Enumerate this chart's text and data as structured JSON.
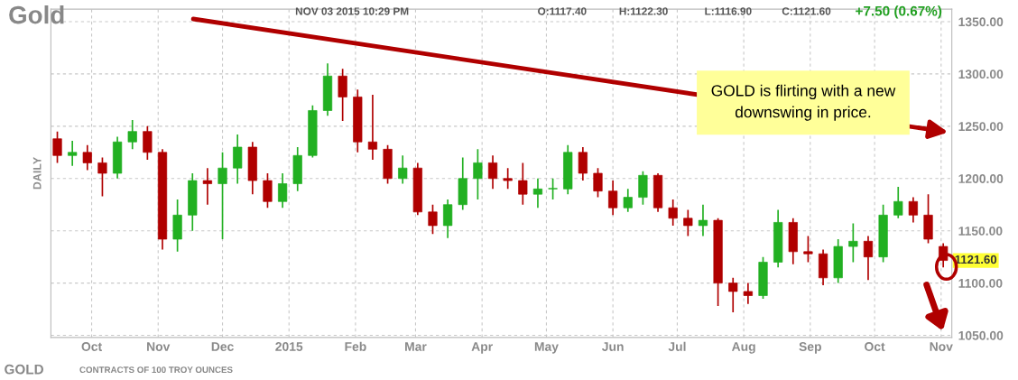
{
  "chart_data": {
    "type": "candlestick",
    "title": "Gold",
    "subtitle": "NOV 03 2015 10:29 PM",
    "ylabel": "DAILY",
    "annotations": [
      "O:1117.40",
      "H:1122.30",
      "L:1116.90",
      "C:1121.60",
      "+7.50 (0.67%)",
      "GOLD is flirting with a new downswing in price.",
      {
        "text": "1121.60",
        "x": "2015-11-02",
        "y": 1121.6
      },
      "GOLD",
      "CONTRACTS OF 100 TROY OUNCES"
    ],
    "x": [
      "2014-09-15",
      "2014-09-22",
      "2014-09-29",
      "2014-10-06",
      "2014-10-13",
      "2014-10-20",
      "2014-10-27",
      "2014-11-03",
      "2014-11-10",
      "2014-11-17",
      "2014-11-24",
      "2014-12-01",
      "2014-12-08",
      "2014-12-15",
      "2014-12-22",
      "2014-12-29",
      "2015-01-05",
      "2015-01-12",
      "2015-01-19",
      "2015-01-26",
      "2015-02-02",
      "2015-02-09",
      "2015-02-16",
      "2015-02-23",
      "2015-03-02",
      "2015-03-09",
      "2015-03-16",
      "2015-03-23",
      "2015-03-30",
      "2015-04-06",
      "2015-04-13",
      "2015-04-20",
      "2015-04-27",
      "2015-05-04",
      "2015-05-11",
      "2015-05-18",
      "2015-05-25",
      "2015-06-01",
      "2015-06-08",
      "2015-06-15",
      "2015-06-22",
      "2015-06-29",
      "2015-07-06",
      "2015-07-13",
      "2015-07-20",
      "2015-07-27",
      "2015-08-03",
      "2015-08-10",
      "2015-08-17",
      "2015-08-24",
      "2015-08-31",
      "2015-09-07",
      "2015-09-14",
      "2015-09-21",
      "2015-09-28",
      "2015-10-05",
      "2015-10-12",
      "2015-10-19",
      "2015-10-26",
      "2015-11-02"
    ],
    "ohlc": [
      [
        1238,
        1245,
        1215,
        1222
      ],
      [
        1222,
        1236,
        1212,
        1225
      ],
      [
        1225,
        1232,
        1208,
        1215
      ],
      [
        1215,
        1220,
        1183,
        1205
      ],
      [
        1205,
        1240,
        1200,
        1235
      ],
      [
        1235,
        1256,
        1228,
        1245
      ],
      [
        1245,
        1250,
        1218,
        1225
      ],
      [
        1225,
        1228,
        1132,
        1142
      ],
      [
        1142,
        1180,
        1130,
        1165
      ],
      [
        1165,
        1205,
        1150,
        1198
      ],
      [
        1198,
        1210,
        1175,
        1195
      ],
      [
        1195,
        1225,
        1142,
        1210
      ],
      [
        1210,
        1242,
        1195,
        1230
      ],
      [
        1230,
        1235,
        1185,
        1198
      ],
      [
        1198,
        1205,
        1172,
        1178
      ],
      [
        1178,
        1205,
        1172,
        1195
      ],
      [
        1195,
        1230,
        1188,
        1222
      ],
      [
        1222,
        1270,
        1220,
        1265
      ],
      [
        1265,
        1310,
        1260,
        1298
      ],
      [
        1298,
        1305,
        1255,
        1278
      ],
      [
        1278,
        1285,
        1225,
        1235
      ],
      [
        1235,
        1280,
        1218,
        1228
      ],
      [
        1228,
        1232,
        1195,
        1200
      ],
      [
        1200,
        1222,
        1195,
        1210
      ],
      [
        1210,
        1215,
        1165,
        1168
      ],
      [
        1168,
        1175,
        1147,
        1155
      ],
      [
        1155,
        1180,
        1143,
        1175
      ],
      [
        1175,
        1220,
        1170,
        1200
      ],
      [
        1200,
        1228,
        1180,
        1215
      ],
      [
        1215,
        1222,
        1190,
        1200
      ],
      [
        1200,
        1210,
        1190,
        1198
      ],
      [
        1198,
        1215,
        1175,
        1185
      ],
      [
        1185,
        1200,
        1172,
        1190
      ],
      [
        1190,
        1200,
        1180,
        1190
      ],
      [
        1190,
        1232,
        1185,
        1225
      ],
      [
        1225,
        1230,
        1198,
        1205
      ],
      [
        1205,
        1210,
        1182,
        1188
      ],
      [
        1188,
        1198,
        1165,
        1172
      ],
      [
        1172,
        1190,
        1168,
        1182
      ],
      [
        1182,
        1207,
        1175,
        1203
      ],
      [
        1203,
        1205,
        1168,
        1172
      ],
      [
        1172,
        1180,
        1155,
        1162
      ],
      [
        1162,
        1170,
        1145,
        1155
      ],
      [
        1155,
        1175,
        1145,
        1160
      ],
      [
        1160,
        1162,
        1078,
        1100
      ],
      [
        1100,
        1105,
        1072,
        1092
      ],
      [
        1092,
        1100,
        1080,
        1088
      ],
      [
        1088,
        1125,
        1085,
        1120
      ],
      [
        1120,
        1170,
        1115,
        1158
      ],
      [
        1158,
        1162,
        1118,
        1130
      ],
      [
        1130,
        1145,
        1120,
        1128
      ],
      [
        1128,
        1132,
        1098,
        1105
      ],
      [
        1105,
        1142,
        1100,
        1135
      ],
      [
        1135,
        1157,
        1120,
        1140
      ],
      [
        1140,
        1145,
        1103,
        1125
      ],
      [
        1125,
        1175,
        1120,
        1165
      ],
      [
        1165,
        1192,
        1162,
        1178
      ],
      [
        1178,
        1182,
        1158,
        1165
      ],
      [
        1165,
        1185,
        1138,
        1142
      ],
      [
        1135,
        1138,
        1115,
        1121.6
      ]
    ],
    "colors": [
      "#b00000",
      "#22b022",
      "#b00000",
      "#b00000",
      "#22b022",
      "#22b022",
      "#b00000",
      "#b00000",
      "#22b022",
      "#22b022",
      "#b00000",
      "#22b022",
      "#22b022",
      "#b00000",
      "#b00000",
      "#22b022",
      "#22b022",
      "#22b022",
      "#22b022",
      "#b00000",
      "#b00000",
      "#b00000",
      "#b00000",
      "#22b022",
      "#b00000",
      "#b00000",
      "#22b022",
      "#22b022",
      "#22b022",
      "#b00000",
      "#b00000",
      "#b00000",
      "#22b022",
      "#22b022",
      "#22b022",
      "#b00000",
      "#b00000",
      "#b00000",
      "#22b022",
      "#22b022",
      "#b00000",
      "#b00000",
      "#b00000",
      "#22b022",
      "#b00000",
      "#b00000",
      "#b00000",
      "#22b022",
      "#22b022",
      "#b00000",
      "#b00000",
      "#b00000",
      "#22b022",
      "#22b022",
      "#b00000",
      "#22b022",
      "#22b022",
      "#b00000",
      "#b00000",
      "#b00000"
    ],
    "xlim": [
      "2014-09-12",
      "2015-11-06"
    ],
    "xticks": [
      {
        "value": "2014-10-01",
        "label": "Oct"
      },
      {
        "value": "2014-11-01",
        "label": "Nov"
      },
      {
        "value": "2014-12-01",
        "label": "Dec"
      },
      {
        "value": "2015-01-01",
        "label": "2015"
      },
      {
        "value": "2015-02-01",
        "label": "Feb"
      },
      {
        "value": "2015-03-01",
        "label": "Mar"
      },
      {
        "value": "2015-04-01",
        "label": "Apr"
      },
      {
        "value": "2015-05-01",
        "label": "May"
      },
      {
        "value": "2015-06-01",
        "label": "Jun"
      },
      {
        "value": "2015-07-01",
        "label": "Jul"
      },
      {
        "value": "2015-08-01",
        "label": "Aug"
      },
      {
        "value": "2015-09-01",
        "label": "Sep"
      },
      {
        "value": "2015-10-01",
        "label": "Oct"
      },
      {
        "value": "2015-11-01",
        "label": "Nov"
      }
    ],
    "ylim": [
      1048,
      1362
    ],
    "yticks": [
      {
        "value": 1050,
        "label": "1050.00"
      },
      {
        "value": 1100,
        "label": "1100.00"
      },
      {
        "value": 1150,
        "label": "1150.00"
      },
      {
        "value": 1200,
        "label": "1200.00"
      },
      {
        "value": 1250,
        "label": "1250.00"
      },
      {
        "value": 1300,
        "label": "1300.00"
      },
      {
        "value": 1350,
        "label": "1350.00"
      }
    ],
    "grid": true
  }
}
